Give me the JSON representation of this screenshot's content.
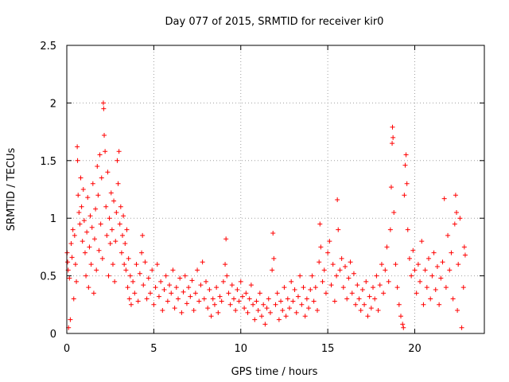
{
  "chart_data": {
    "type": "scatter",
    "title": "Day 077 of 2015, SRMTID for receiver kir0",
    "xlabel": "GPS time / hours",
    "ylabel": "SRMTID / TECUs",
    "xlim": [
      0,
      24
    ],
    "ylim": [
      0,
      2.5
    ],
    "xticks": [
      0,
      5,
      10,
      15,
      20
    ],
    "xtick_labels": [
      "0",
      "5",
      "10",
      "15",
      "20"
    ],
    "yticks": [
      0,
      0.5,
      1,
      1.5,
      2,
      2.5
    ],
    "ytick_labels": [
      "0",
      "0.5",
      "1",
      "1.5",
      "2",
      "2.5"
    ],
    "grid": true,
    "marker": "+",
    "color": "#ff0000",
    "series": [
      {
        "name": "SRMTID",
        "note": "dense point cloud; values estimated from figure",
        "points": [
          [
            0.02,
            0.7
          ],
          [
            0.05,
            0.62
          ],
          [
            0.08,
            0.55
          ],
          [
            0.1,
            0.05
          ],
          [
            0.15,
            0.48
          ],
          [
            0.2,
            0.12
          ],
          [
            0.25,
            0.78
          ],
          [
            0.3,
            0.66
          ],
          [
            0.35,
            0.9
          ],
          [
            0.4,
            0.3
          ],
          [
            0.45,
            0.85
          ],
          [
            0.5,
            0.6
          ],
          [
            0.55,
            0.45
          ],
          [
            0.6,
            1.62
          ],
          [
            0.62,
            1.5
          ],
          [
            0.65,
            1.2
          ],
          [
            0.7,
            1.05
          ],
          [
            0.75,
            0.95
          ],
          [
            0.8,
            1.35
          ],
          [
            0.85,
            1.1
          ],
          [
            0.9,
            0.8
          ],
          [
            0.95,
            1.25
          ],
          [
            1.0,
            0.98
          ],
          [
            1.05,
            0.7
          ],
          [
            1.1,
            0.5
          ],
          [
            1.15,
            0.88
          ],
          [
            1.2,
            1.18
          ],
          [
            1.25,
            0.4
          ],
          [
            1.3,
            0.75
          ],
          [
            1.35,
            1.02
          ],
          [
            1.4,
            0.6
          ],
          [
            1.45,
            0.92
          ],
          [
            1.5,
            1.3
          ],
          [
            1.55,
            0.35
          ],
          [
            1.6,
            0.82
          ],
          [
            1.65,
            1.08
          ],
          [
            1.7,
            0.55
          ],
          [
            1.75,
            1.45
          ],
          [
            1.8,
            1.2
          ],
          [
            1.85,
            0.72
          ],
          [
            1.9,
            1.55
          ],
          [
            1.95,
            0.95
          ],
          [
            2.0,
            1.35
          ],
          [
            2.05,
            0.65
          ],
          [
            2.1,
            2.0
          ],
          [
            2.12,
            1.95
          ],
          [
            2.15,
            1.72
          ],
          [
            2.2,
            1.58
          ],
          [
            2.25,
            1.1
          ],
          [
            2.3,
            0.85
          ],
          [
            2.35,
            1.4
          ],
          [
            2.4,
            0.5
          ],
          [
            2.45,
            1.0
          ],
          [
            2.5,
            0.78
          ],
          [
            2.55,
            1.22
          ],
          [
            2.6,
            0.9
          ],
          [
            2.65,
            0.6
          ],
          [
            2.7,
            1.15
          ],
          [
            2.75,
            0.45
          ],
          [
            2.8,
            0.8
          ],
          [
            2.85,
            1.05
          ],
          [
            2.9,
            1.5
          ],
          [
            2.95,
            1.3
          ],
          [
            3.0,
            1.58
          ],
          [
            3.05,
            0.95
          ],
          [
            3.1,
            1.1
          ],
          [
            3.15,
            0.7
          ],
          [
            3.2,
            0.85
          ],
          [
            3.25,
            1.02
          ],
          [
            3.3,
            0.6
          ],
          [
            3.35,
            0.78
          ],
          [
            3.4,
            0.55
          ],
          [
            3.45,
            0.9
          ],
          [
            3.5,
            0.4
          ],
          [
            3.55,
            0.65
          ],
          [
            3.6,
            0.3
          ],
          [
            3.65,
            0.5
          ],
          [
            3.7,
            0.25
          ],
          [
            3.8,
            0.45
          ],
          [
            3.9,
            0.35
          ],
          [
            4.0,
            0.6
          ],
          [
            4.1,
            0.28
          ],
          [
            4.2,
            0.52
          ],
          [
            4.3,
            0.7
          ],
          [
            4.35,
            0.85
          ],
          [
            4.4,
            0.42
          ],
          [
            4.5,
            0.62
          ],
          [
            4.6,
            0.3
          ],
          [
            4.7,
            0.48
          ],
          [
            4.8,
            0.35
          ],
          [
            4.9,
            0.55
          ],
          [
            5.0,
            0.25
          ],
          [
            5.1,
            0.4
          ],
          [
            5.2,
            0.6
          ],
          [
            5.3,
            0.32
          ],
          [
            5.4,
            0.45
          ],
          [
            5.5,
            0.2
          ],
          [
            5.6,
            0.38
          ],
          [
            5.7,
            0.5
          ],
          [
            5.8,
            0.28
          ],
          [
            5.9,
            0.42
          ],
          [
            6.0,
            0.35
          ],
          [
            6.1,
            0.55
          ],
          [
            6.2,
            0.22
          ],
          [
            6.3,
            0.4
          ],
          [
            6.4,
            0.3
          ],
          [
            6.5,
            0.48
          ],
          [
            6.6,
            0.18
          ],
          [
            6.7,
            0.36
          ],
          [
            6.8,
            0.5
          ],
          [
            6.9,
            0.26
          ],
          [
            7.0,
            0.4
          ],
          [
            7.1,
            0.32
          ],
          [
            7.2,
            0.46
          ],
          [
            7.3,
            0.2
          ],
          [
            7.4,
            0.35
          ],
          [
            7.5,
            0.55
          ],
          [
            7.6,
            0.28
          ],
          [
            7.7,
            0.42
          ],
          [
            7.8,
            0.62
          ],
          [
            7.9,
            0.3
          ],
          [
            8.0,
            0.45
          ],
          [
            8.1,
            0.22
          ],
          [
            8.2,
            0.38
          ],
          [
            8.3,
            0.15
          ],
          [
            8.4,
            0.3
          ],
          [
            8.5,
            0.25
          ],
          [
            8.6,
            0.4
          ],
          [
            8.7,
            0.18
          ],
          [
            8.8,
            0.32
          ],
          [
            8.9,
            0.28
          ],
          [
            9.0,
            0.45
          ],
          [
            9.1,
            0.6
          ],
          [
            9.15,
            0.82
          ],
          [
            9.2,
            0.5
          ],
          [
            9.3,
            0.35
          ],
          [
            9.4,
            0.25
          ],
          [
            9.5,
            0.42
          ],
          [
            9.6,
            0.3
          ],
          [
            9.7,
            0.2
          ],
          [
            9.8,
            0.38
          ],
          [
            9.9,
            0.28
          ],
          [
            10.0,
            0.45
          ],
          [
            10.1,
            0.32
          ],
          [
            10.2,
            0.22
          ],
          [
            10.3,
            0.35
          ],
          [
            10.4,
            0.18
          ],
          [
            10.5,
            0.3
          ],
          [
            10.6,
            0.42
          ],
          [
            10.7,
            0.25
          ],
          [
            10.8,
            0.12
          ],
          [
            10.9,
            0.28
          ],
          [
            11.0,
            0.2
          ],
          [
            11.1,
            0.35
          ],
          [
            11.2,
            0.15
          ],
          [
            11.3,
            0.25
          ],
          [
            11.4,
            0.08
          ],
          [
            11.5,
            0.22
          ],
          [
            11.6,
            0.3
          ],
          [
            11.7,
            0.18
          ],
          [
            11.8,
            0.55
          ],
          [
            11.85,
            0.87
          ],
          [
            11.9,
            0.65
          ],
          [
            12.0,
            0.25
          ],
          [
            12.1,
            0.35
          ],
          [
            12.2,
            0.12
          ],
          [
            12.3,
            0.28
          ],
          [
            12.4,
            0.2
          ],
          [
            12.5,
            0.4
          ],
          [
            12.6,
            0.15
          ],
          [
            12.7,
            0.3
          ],
          [
            12.8,
            0.22
          ],
          [
            12.9,
            0.45
          ],
          [
            13.0,
            0.28
          ],
          [
            13.1,
            0.38
          ],
          [
            13.2,
            0.18
          ],
          [
            13.3,
            0.32
          ],
          [
            13.4,
            0.5
          ],
          [
            13.5,
            0.25
          ],
          [
            13.6,
            0.4
          ],
          [
            13.7,
            0.15
          ],
          [
            13.8,
            0.3
          ],
          [
            13.9,
            0.22
          ],
          [
            14.0,
            0.38
          ],
          [
            14.1,
            0.5
          ],
          [
            14.2,
            0.28
          ],
          [
            14.3,
            0.4
          ],
          [
            14.4,
            0.2
          ],
          [
            14.5,
            0.62
          ],
          [
            14.55,
            0.95
          ],
          [
            14.6,
            0.75
          ],
          [
            14.7,
            0.45
          ],
          [
            14.8,
            0.55
          ],
          [
            14.9,
            0.35
          ],
          [
            15.0,
            0.7
          ],
          [
            15.1,
            0.8
          ],
          [
            15.2,
            0.42
          ],
          [
            15.3,
            0.6
          ],
          [
            15.4,
            0.28
          ],
          [
            15.5,
            0.5
          ],
          [
            15.55,
            1.16
          ],
          [
            15.6,
            0.9
          ],
          [
            15.7,
            0.55
          ],
          [
            15.8,
            0.65
          ],
          [
            15.9,
            0.4
          ],
          [
            16.0,
            0.58
          ],
          [
            16.1,
            0.3
          ],
          [
            16.2,
            0.48
          ],
          [
            16.3,
            0.62
          ],
          [
            16.4,
            0.35
          ],
          [
            16.5,
            0.52
          ],
          [
            16.6,
            0.25
          ],
          [
            16.7,
            0.42
          ],
          [
            16.8,
            0.3
          ],
          [
            16.9,
            0.2
          ],
          [
            17.0,
            0.38
          ],
          [
            17.1,
            0.25
          ],
          [
            17.2,
            0.45
          ],
          [
            17.3,
            0.15
          ],
          [
            17.4,
            0.32
          ],
          [
            17.5,
            0.22
          ],
          [
            17.6,
            0.4
          ],
          [
            17.7,
            0.3
          ],
          [
            17.8,
            0.5
          ],
          [
            17.9,
            0.2
          ],
          [
            18.0,
            0.42
          ],
          [
            18.1,
            0.6
          ],
          [
            18.2,
            0.35
          ],
          [
            18.3,
            0.55
          ],
          [
            18.4,
            0.75
          ],
          [
            18.5,
            0.45
          ],
          [
            18.6,
            0.9
          ],
          [
            18.65,
            1.27
          ],
          [
            18.7,
            1.65
          ],
          [
            18.72,
            1.79
          ],
          [
            18.75,
            1.7
          ],
          [
            18.8,
            1.05
          ],
          [
            18.9,
            0.6
          ],
          [
            19.0,
            0.4
          ],
          [
            19.1,
            0.25
          ],
          [
            19.2,
            0.15
          ],
          [
            19.3,
            0.08
          ],
          [
            19.35,
            0.05
          ],
          [
            19.4,
            1.2
          ],
          [
            19.45,
            1.46
          ],
          [
            19.5,
            1.55
          ],
          [
            19.55,
            1.3
          ],
          [
            19.6,
            0.9
          ],
          [
            19.7,
            0.65
          ],
          [
            19.8,
            0.5
          ],
          [
            19.9,
            0.72
          ],
          [
            20.0,
            0.55
          ],
          [
            20.1,
            0.35
          ],
          [
            20.2,
            0.6
          ],
          [
            20.3,
            0.45
          ],
          [
            20.4,
            0.8
          ],
          [
            20.5,
            0.25
          ],
          [
            20.6,
            0.55
          ],
          [
            20.7,
            0.4
          ],
          [
            20.8,
            0.65
          ],
          [
            20.9,
            0.3
          ],
          [
            21.0,
            0.5
          ],
          [
            21.1,
            0.7
          ],
          [
            21.2,
            0.38
          ],
          [
            21.3,
            0.58
          ],
          [
            21.4,
            0.25
          ],
          [
            21.5,
            0.48
          ],
          [
            21.6,
            0.62
          ],
          [
            21.7,
            1.17
          ],
          [
            21.8,
            0.4
          ],
          [
            21.9,
            0.85
          ],
          [
            22.0,
            0.55
          ],
          [
            22.1,
            0.7
          ],
          [
            22.2,
            0.3
          ],
          [
            22.3,
            0.95
          ],
          [
            22.35,
            1.2
          ],
          [
            22.4,
            1.05
          ],
          [
            22.45,
            0.2
          ],
          [
            22.5,
            0.6
          ],
          [
            22.6,
            1.0
          ],
          [
            22.7,
            0.05
          ],
          [
            22.8,
            0.4
          ],
          [
            22.85,
            0.75
          ],
          [
            22.9,
            0.68
          ]
        ]
      }
    ]
  }
}
